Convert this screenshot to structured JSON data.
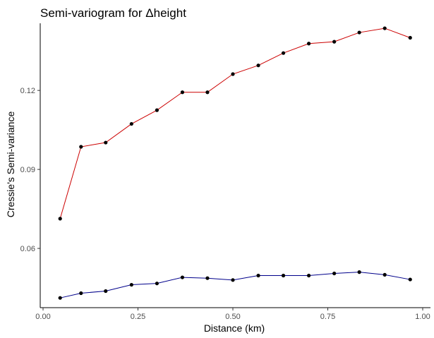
{
  "chart_data": {
    "type": "line",
    "title": "Semi-variogram for Δheight",
    "xlabel": "Distance (km)",
    "ylabel": "Cressie's Semi-variance",
    "xlim": [
      0.0,
      1.0
    ],
    "ylim": [
      0.0375,
      0.1455
    ],
    "xticks": [
      0.0,
      0.25,
      0.5,
      0.75,
      1.0
    ],
    "xtick_labels": [
      "0.00",
      "0.25",
      "0.50",
      "0.75",
      "1.00"
    ],
    "yticks": [
      0.06,
      0.09,
      0.12
    ],
    "ytick_labels": [
      "0.06",
      "0.09",
      "0.12"
    ],
    "grid": false,
    "legend": "none",
    "x": [
      0.045,
      0.1,
      0.165,
      0.233,
      0.3,
      0.367,
      0.433,
      0.5,
      0.567,
      0.633,
      0.7,
      0.767,
      0.833,
      0.9,
      0.967
    ],
    "series": [
      {
        "color": "#cc0000",
        "point_color": "#000000",
        "values": [
          0.0713,
          0.0986,
          0.1002,
          0.1073,
          0.1125,
          0.1193,
          0.1193,
          0.1262,
          0.1295,
          0.1342,
          0.1378,
          0.1385,
          0.142,
          0.1436,
          0.14
        ]
      },
      {
        "color": "#00008b",
        "point_color": "#000000",
        "values": [
          0.0412,
          0.043,
          0.0438,
          0.0462,
          0.0467,
          0.049,
          0.0487,
          0.048,
          0.0497,
          0.0497,
          0.0497,
          0.0505,
          0.051,
          0.05,
          0.0482
        ]
      }
    ]
  }
}
